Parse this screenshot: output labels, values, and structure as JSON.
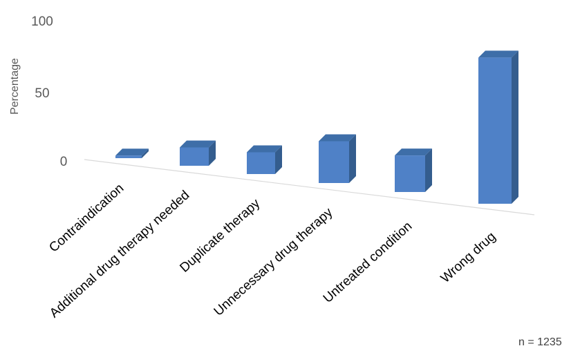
{
  "chart_data": {
    "type": "bar",
    "title": "",
    "xlabel": "",
    "ylabel": "Percentage",
    "ylim": [
      0,
      100
    ],
    "yticks": [
      0,
      50,
      100
    ],
    "grid": false,
    "legend": "none",
    "categories": [
      "Contraindication",
      "Additional drug therapy needed",
      "Duplicate therapy",
      "Unnecessary drug therapy",
      "Untreated condition",
      "Wrong drug"
    ],
    "values": [
      1.5,
      10.5,
      12.5,
      24,
      21,
      84
    ],
    "note": "n = 1235",
    "colors": {
      "front": "#4f81c7",
      "top": "#3e6ea8",
      "side": "#345d8e"
    }
  }
}
